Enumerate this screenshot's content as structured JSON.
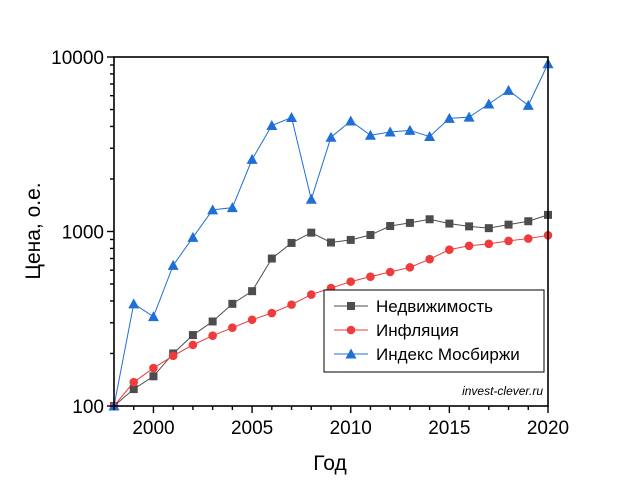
{
  "chart_data": {
    "type": "line",
    "title": "",
    "xlabel": "Год",
    "ylabel": "Цена, о.е.",
    "xlim": [
      1998,
      2020
    ],
    "ylim": [
      100,
      10000
    ],
    "yscale": "log",
    "xticks": [
      2000,
      2005,
      2010,
      2015,
      2020
    ],
    "yticks": [
      100,
      1000,
      10000
    ],
    "ytick_labels": [
      "100",
      "1000",
      "10000"
    ],
    "grid": false,
    "legend_position": "lower-right",
    "watermark": "invest-clever.ru",
    "x": [
      1998,
      1999,
      2000,
      2001,
      2002,
      2003,
      2004,
      2005,
      2006,
      2007,
      2008,
      2009,
      2010,
      2011,
      2012,
      2013,
      2014,
      2015,
      2016,
      2017,
      2018,
      2019,
      2020
    ],
    "series": [
      {
        "name": "Недвижимость",
        "color": "#4d4d4d",
        "marker": "square",
        "values": [
          100,
          125,
          148,
          200,
          255,
          305,
          385,
          455,
          700,
          860,
          985,
          865,
          895,
          955,
          1075,
          1120,
          1175,
          1110,
          1070,
          1045,
          1095,
          1145,
          1245
        ]
      },
      {
        "name": "Инфляция",
        "color": "#ef3b3b",
        "marker": "circle",
        "values": [
          100,
          137,
          165,
          194,
          224,
          253,
          281,
          312,
          341,
          381,
          435,
          474,
          516,
          551,
          586,
          623,
          694,
          787,
          828,
          850,
          883,
          911,
          951
        ]
      },
      {
        "name": "Индекс Мосбиржи",
        "color": "#1f6fd6",
        "marker": "triangle",
        "values": [
          100,
          385,
          325,
          640,
          925,
          1330,
          1370,
          2590,
          4050,
          4500,
          1530,
          3470,
          4300,
          3560,
          3720,
          3800,
          3500,
          4450,
          4520,
          5380,
          6440,
          5280,
          9150
        ]
      }
    ]
  }
}
